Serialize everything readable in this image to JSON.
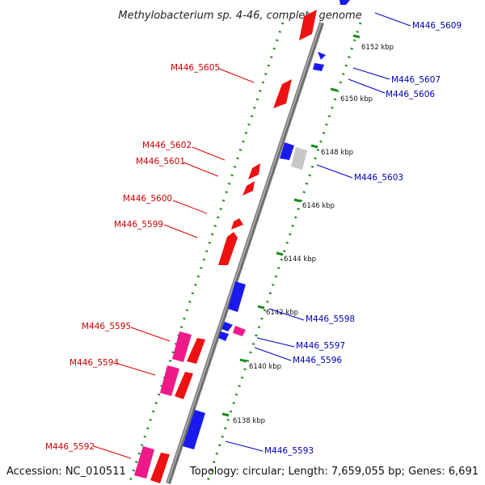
{
  "title": "Methylobacterium sp. 4-46, complete genome",
  "footer": {
    "accession": "Accession: NC_010511",
    "topology": "Topology: circular; Length: 7,659,055 bp; Genes: 6,691"
  },
  "colors": {
    "forward_gene": "#ee1111",
    "reverse_gene": "#1a1aee",
    "rna_gene": "#ee1a88",
    "pseudo_gene": "#c8c8c8",
    "backbone": "#8c8c8c",
    "tick": "#1a8c1a",
    "left_label": "#cc0000",
    "right_label": "#0000bb"
  },
  "ticks": [
    {
      "label": "6152 kbp"
    },
    {
      "label": "6150 kbp"
    },
    {
      "label": "6148 kbp"
    },
    {
      "label": "6146 kbp"
    },
    {
      "label": "6144 kbp"
    },
    {
      "label": "6142 kbp"
    },
    {
      "label": "6140 kbp"
    },
    {
      "label": "6138 kbp"
    }
  ],
  "left_labels": [
    {
      "text": "M446_5605"
    },
    {
      "text": "M446_5602"
    },
    {
      "text": "M446_5601"
    },
    {
      "text": "M446_5600"
    },
    {
      "text": "M446_5599"
    },
    {
      "text": "M446_5595"
    },
    {
      "text": "M446_5594"
    },
    {
      "text": "M446_5592"
    }
  ],
  "right_labels": [
    {
      "text": "M446_5609"
    },
    {
      "text": "M446_5607"
    },
    {
      "text": "M446_5606"
    },
    {
      "text": "M446_5603"
    },
    {
      "text": "M446_5598"
    },
    {
      "text": "M446_5597"
    },
    {
      "text": "M446_5596"
    },
    {
      "text": "M446_5593"
    }
  ]
}
